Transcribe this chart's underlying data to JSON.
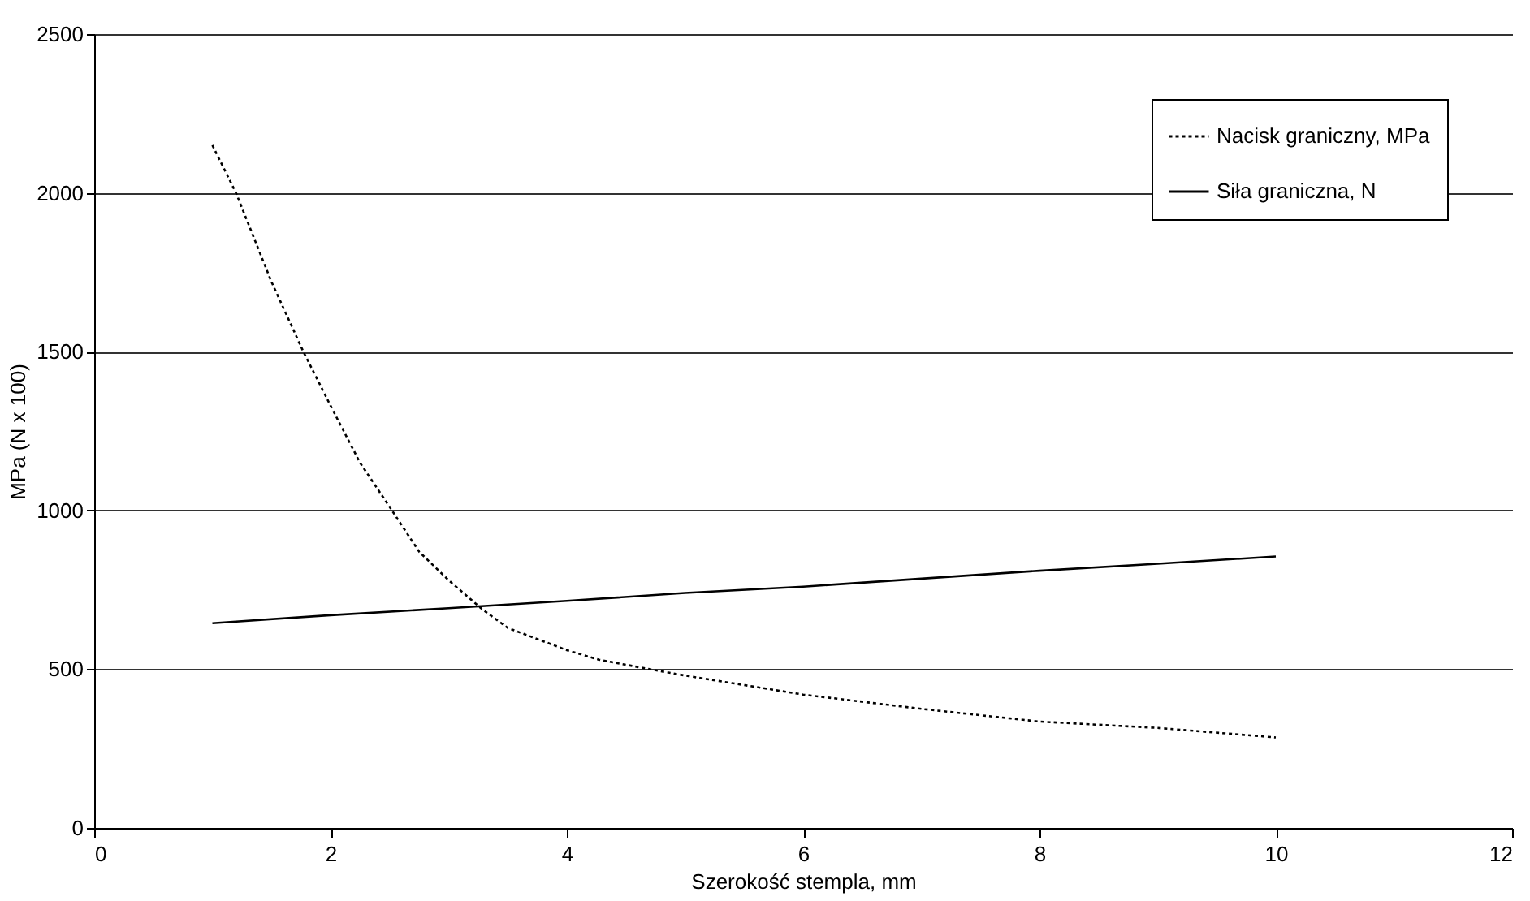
{
  "chart_data": {
    "type": "line",
    "xlabel": "Szerokość stempla, mm",
    "ylabel": "MPa (N x 100)",
    "xlim": [
      0,
      12
    ],
    "xticks": [
      0,
      2,
      4,
      6,
      8,
      10,
      12
    ],
    "ylim": [
      0,
      2500
    ],
    "yticks": [
      0,
      500,
      1000,
      1500,
      2000,
      2500
    ],
    "grid": "y",
    "legend": "top right",
    "marker": "none",
    "series": [
      {
        "name": "Nacisk graniczny, MPa",
        "color": "#000000",
        "line_style": "dotted",
        "x": [
          1,
          1.2,
          1.5,
          1.77,
          2,
          2.25,
          2.52,
          2.75,
          3,
          3.28,
          3.5,
          4,
          4.27,
          4.7,
          5,
          5.5,
          6,
          7,
          8,
          9,
          10
        ],
        "values": [
          2150,
          2000,
          1720,
          1500,
          1330,
          1150,
          1000,
          870,
          780,
          690,
          630,
          560,
          530,
          500,
          480,
          450,
          420,
          375,
          335,
          315,
          285
        ]
      },
      {
        "name": "Siła graniczna, N",
        "color": "#000000",
        "line_style": "solid",
        "x": [
          1,
          2,
          3,
          4,
          5,
          6,
          7,
          8,
          9,
          10
        ],
        "values": [
          645,
          670,
          692,
          715,
          740,
          760,
          785,
          810,
          832,
          855
        ]
      }
    ]
  }
}
